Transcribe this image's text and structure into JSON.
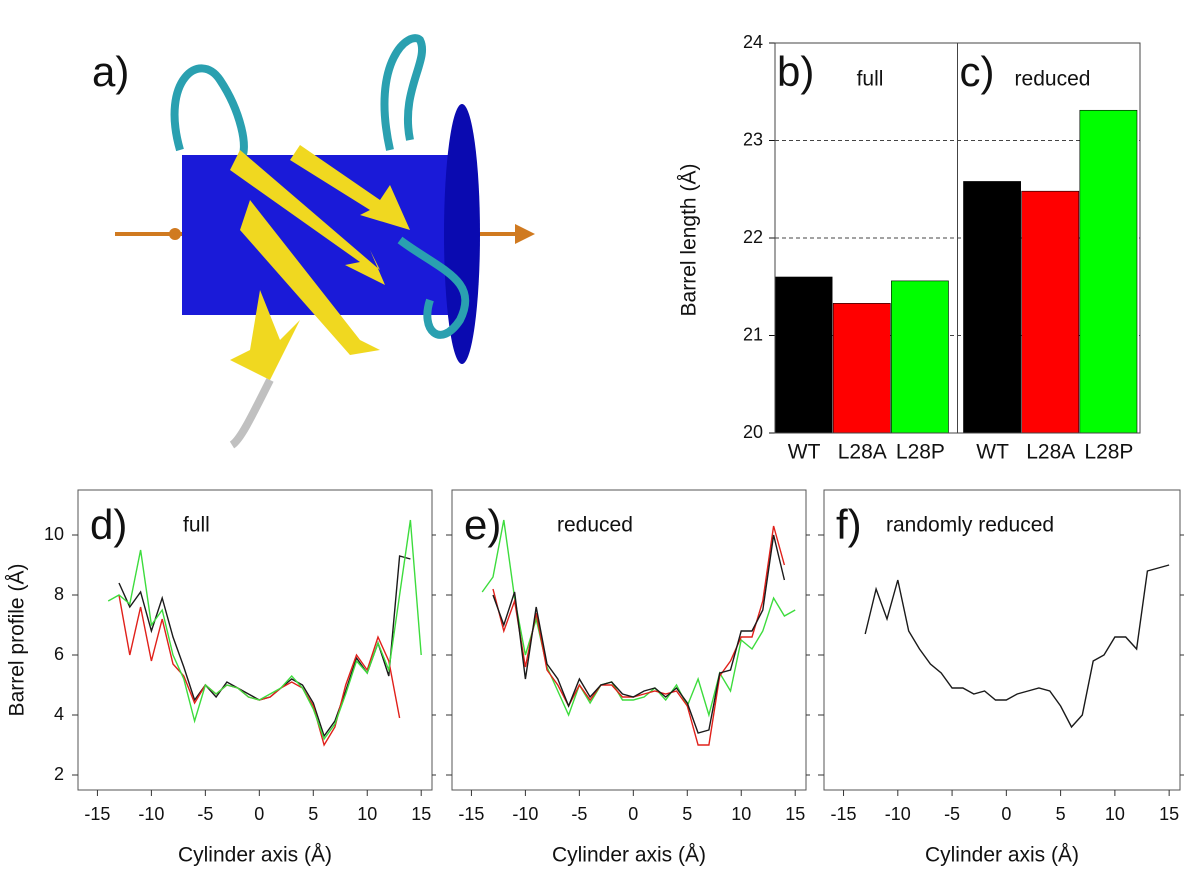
{
  "panel_a": {
    "label": "a)"
  },
  "chart_data": [
    {
      "type": "bar",
      "ylabel": "Barrel length (Å)",
      "ylim": [
        20,
        24
      ],
      "yticks": [
        20,
        21,
        22,
        23,
        24
      ],
      "grid": true,
      "colors": [
        "#000000",
        "#ff0000",
        "#00ff00"
      ],
      "panels": [
        {
          "label": "b)",
          "title": "full",
          "categories": [
            "WT",
            "L28A",
            "L28P"
          ],
          "values": [
            21.6,
            21.33,
            21.56
          ]
        },
        {
          "label": "c)",
          "title": "reduced",
          "categories": [
            "WT",
            "L28A",
            "L28P"
          ],
          "values": [
            22.58,
            22.48,
            23.31
          ]
        }
      ]
    },
    {
      "type": "line",
      "label": "d)",
      "title": "full",
      "xlabel": "Cylinder axis (Å)",
      "ylabel": "Barrel profile (Å)",
      "xlim": [
        -16.8,
        16
      ],
      "xticks": [
        -15,
        -10,
        -5,
        0,
        5,
        10,
        15
      ],
      "ylim": [
        1.5,
        11.5
      ],
      "yticks": [
        2,
        4,
        6,
        8,
        10
      ],
      "ytick_labels": true,
      "x": [
        -14,
        -13,
        -12,
        -11,
        -10,
        -9,
        -8,
        -7,
        -6,
        -5,
        -4,
        -3,
        -2,
        -1,
        0,
        1,
        2,
        3,
        4,
        5,
        6,
        7,
        8,
        9,
        10,
        11,
        12,
        13,
        14,
        15
      ],
      "series": [
        {
          "color": "#1a1a1a",
          "values": [
            null,
            8.4,
            7.6,
            8.1,
            6.8,
            7.9,
            6.6,
            5.6,
            4.5,
            5.0,
            4.6,
            5.1,
            4.9,
            4.7,
            4.5,
            4.6,
            4.9,
            5.2,
            5.0,
            4.4,
            3.3,
            3.8,
            4.8,
            5.9,
            5.4,
            6.4,
            5.3,
            9.3,
            9.2,
            null
          ]
        },
        {
          "color": "#e0201a",
          "values": [
            null,
            8.0,
            6.0,
            7.6,
            5.8,
            7.2,
            5.7,
            5.3,
            4.4,
            5.0,
            4.7,
            5.0,
            4.9,
            4.6,
            4.5,
            4.6,
            4.9,
            5.1,
            4.9,
            4.3,
            3.0,
            3.6,
            5.0,
            6.0,
            5.5,
            6.6,
            5.8,
            3.9,
            null,
            null
          ]
        },
        {
          "color": "#3ddc3d",
          "values": [
            7.8,
            8.0,
            7.7,
            9.5,
            7.0,
            7.5,
            6.0,
            5.2,
            3.8,
            5.0,
            4.7,
            5.0,
            4.9,
            4.6,
            4.5,
            4.7,
            4.9,
            5.3,
            4.9,
            4.2,
            3.2,
            3.7,
            4.7,
            5.8,
            5.4,
            6.4,
            5.5,
            8.0,
            10.5,
            6.0
          ]
        }
      ]
    },
    {
      "type": "line",
      "label": "e)",
      "title": "reduced",
      "xlabel": "Cylinder axis (Å)",
      "xlim": [
        -16.8,
        16
      ],
      "xticks": [
        -15,
        -10,
        -5,
        0,
        5,
        10,
        15
      ],
      "ylim": [
        1.5,
        11.5
      ],
      "yticks": [
        2,
        4,
        6,
        8,
        10
      ],
      "ytick_labels": false,
      "x": [
        -14,
        -13,
        -12,
        -11,
        -10,
        -9,
        -8,
        -7,
        -6,
        -5,
        -4,
        -3,
        -2,
        -1,
        0,
        1,
        2,
        3,
        4,
        5,
        6,
        7,
        8,
        9,
        10,
        11,
        12,
        13,
        14,
        15
      ],
      "series": [
        {
          "color": "#3ddc3d",
          "values": [
            8.1,
            8.6,
            10.5,
            7.9,
            6.0,
            7.2,
            5.6,
            4.8,
            4.0,
            5.0,
            4.4,
            5.0,
            5.1,
            4.5,
            4.5,
            4.6,
            4.9,
            4.5,
            5.0,
            4.3,
            5.2,
            4.0,
            5.4,
            4.8,
            6.5,
            6.2,
            6.8,
            7.9,
            7.3,
            7.5
          ]
        },
        {
          "color": "#e0201a",
          "values": [
            null,
            8.2,
            6.8,
            7.8,
            5.6,
            7.4,
            5.5,
            5.0,
            4.3,
            5.0,
            4.5,
            5.0,
            5.0,
            4.6,
            4.6,
            4.7,
            4.8,
            4.7,
            4.8,
            4.3,
            3.0,
            3.0,
            5.3,
            5.8,
            6.6,
            6.6,
            7.8,
            10.3,
            9.0,
            null
          ]
        },
        {
          "color": "#1a1a1a",
          "values": [
            null,
            8.0,
            7.0,
            8.1,
            5.2,
            7.6,
            5.7,
            5.2,
            4.3,
            5.2,
            4.6,
            5.0,
            5.1,
            4.7,
            4.6,
            4.8,
            4.9,
            4.6,
            4.9,
            4.4,
            3.4,
            3.5,
            5.4,
            5.5,
            6.8,
            6.8,
            7.5,
            10.0,
            8.5,
            null
          ]
        }
      ]
    },
    {
      "type": "line",
      "label": "f)",
      "title": "randomly reduced",
      "xlabel": "Cylinder axis (Å)",
      "xlim": [
        -16.8,
        16
      ],
      "xticks": [
        -15,
        -10,
        -5,
        0,
        5,
        10,
        15
      ],
      "ylim": [
        1.5,
        11.5
      ],
      "yticks": [
        2,
        4,
        6,
        8,
        10
      ],
      "ytick_labels": false,
      "x": [
        -14,
        -13,
        -12,
        -11,
        -10,
        -9,
        -8,
        -7,
        -6,
        -5,
        -4,
        -3,
        -2,
        -1,
        0,
        1,
        2,
        3,
        4,
        5,
        6,
        7,
        8,
        9,
        10,
        11,
        12,
        13,
        14,
        15
      ],
      "series": [
        {
          "color": "#1a1a1a",
          "values": [
            null,
            6.7,
            8.2,
            7.2,
            8.5,
            6.8,
            6.2,
            5.7,
            5.4,
            4.9,
            4.9,
            4.7,
            4.8,
            4.5,
            4.5,
            4.7,
            4.8,
            4.9,
            4.8,
            4.3,
            3.6,
            4.0,
            5.8,
            6.0,
            6.6,
            6.6,
            6.2,
            8.8,
            8.9,
            9.0
          ]
        }
      ]
    }
  ]
}
